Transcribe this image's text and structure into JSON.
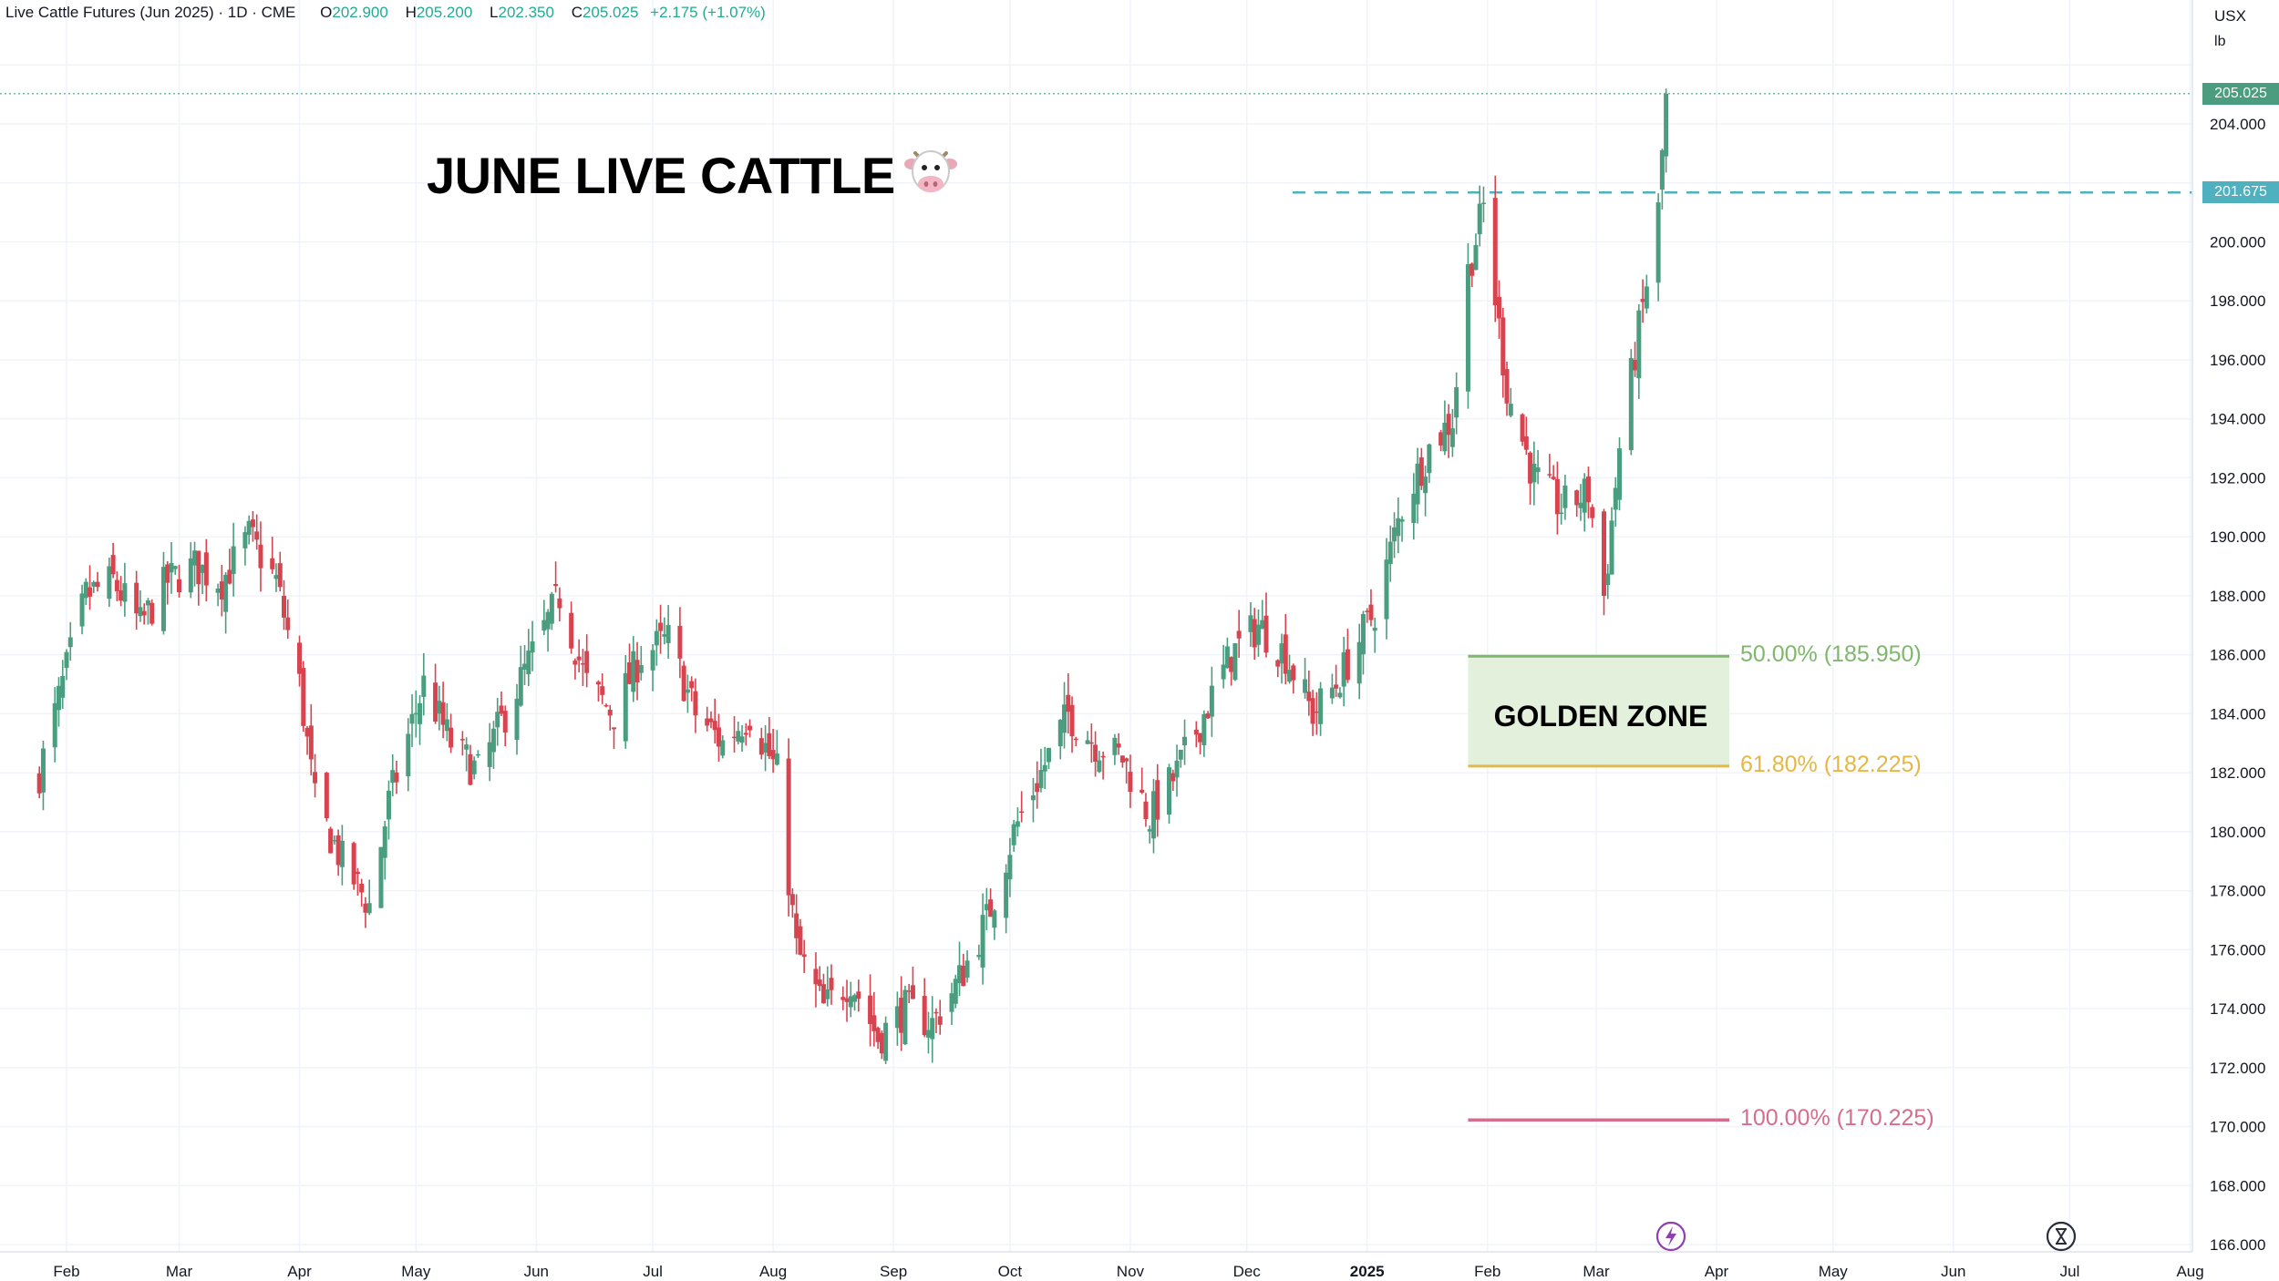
{
  "legend": {
    "symbol": "Live Cattle Futures (Jun 2025) · 1D · CME",
    "open_label": "O",
    "open": "202.900",
    "high_label": "H",
    "high": "205.200",
    "low_label": "L",
    "low": "202.350",
    "close_label": "C",
    "close": "205.025",
    "change": "+2.175 (+1.07%)"
  },
  "currency": {
    "unit": "USX",
    "per": "lb"
  },
  "annotations": {
    "title": "JUNE LIVE CATTLE",
    "zone_label": "GOLDEN ZONE",
    "fib_50": "50.00% (185.950)",
    "fib_618": "61.80% (182.225)",
    "fib_100": "100.00% (170.225)"
  },
  "price_tags": {
    "last": "205.025",
    "resistance": "201.675"
  },
  "colors": {
    "up": "#22ab94",
    "down": "#f23645",
    "candle_up": "#4a9d7f",
    "candle_down": "#d7434f",
    "fib50": "#7fb86b",
    "fib618": "#e4b842",
    "fib100": "#d66d8d",
    "zone_fill": "#e3f1dc",
    "resistance": "#4fb0c0",
    "grid": "#f0f3fa",
    "axis_text": "#131722"
  },
  "icons": {
    "title_icon": "cow-face-icon",
    "axis_buttons": [
      "lightning-icon",
      "hourglass-icon"
    ]
  },
  "chart_data": {
    "type": "candlestick",
    "title": "JUNE LIVE CATTLE",
    "symbol": "Live Cattle Futures (Jun 2025)",
    "interval": "1D",
    "x_ticks": [
      "Feb",
      "Mar",
      "Apr",
      "May",
      "Jun",
      "Jul",
      "Aug",
      "Sep",
      "Oct",
      "Nov",
      "Dec",
      "2025",
      "Feb",
      "Mar",
      "Apr",
      "May",
      "Jun",
      "Jul",
      "Aug"
    ],
    "y_ticks": [
      "166.000",
      "168.000",
      "170.000",
      "172.000",
      "174.000",
      "176.000",
      "178.000",
      "180.000",
      "182.000",
      "184.000",
      "186.000",
      "188.000",
      "190.000",
      "192.000",
      "194.000",
      "196.000",
      "198.000",
      "200.000",
      "204.000"
    ],
    "ylim": [
      166,
      206.5
    ],
    "grid": true,
    "last_price": 205.025,
    "resistance_level": 201.675,
    "fibonacci": [
      {
        "label": "50.00% (185.950)",
        "level": 185.95
      },
      {
        "label": "61.80% (182.225)",
        "level": 182.225
      },
      {
        "label": "100.00% (170.225)",
        "level": 170.225
      }
    ],
    "price_path": {
      "dates": [
        "2024-01-25",
        "2024-02-01",
        "2024-02-06",
        "2024-02-13",
        "2024-02-20",
        "2024-02-27",
        "2024-03-05",
        "2024-03-12",
        "2024-03-19",
        "2024-03-26",
        "2024-04-01",
        "2024-04-05",
        "2024-04-12",
        "2024-04-19",
        "2024-04-24",
        "2024-05-03",
        "2024-05-10",
        "2024-05-17",
        "2024-05-24",
        "2024-05-31",
        "2024-06-07",
        "2024-06-14",
        "2024-06-21",
        "2024-06-28",
        "2024-07-05",
        "2024-07-12",
        "2024-07-19",
        "2024-07-26",
        "2024-08-02",
        "2024-08-07",
        "2024-08-14",
        "2024-08-21",
        "2024-08-28",
        "2024-09-04",
        "2024-09-11",
        "2024-09-18",
        "2024-09-25",
        "2024-10-02",
        "2024-10-09",
        "2024-10-16",
        "2024-10-23",
        "2024-10-30",
        "2024-11-06",
        "2024-11-13",
        "2024-11-20",
        "2024-11-27",
        "2024-12-04",
        "2024-12-11",
        "2024-12-18",
        "2024-12-24",
        "2025-01-03",
        "2025-01-10",
        "2025-01-17",
        "2025-01-23",
        "2025-01-27",
        "2025-01-31",
        "2025-02-06",
        "2025-02-13",
        "2025-02-20",
        "2025-02-27",
        "2025-03-03",
        "2025-03-07",
        "2025-03-12",
        "2025-03-17",
        "2025-03-19"
      ],
      "closes": [
        182,
        185.5,
        188,
        188.5,
        187,
        188.5,
        189,
        188.5,
        190,
        188.5,
        185,
        181,
        179,
        177.5,
        181,
        185,
        183,
        182,
        184,
        186,
        188,
        185,
        184,
        186,
        186.5,
        184,
        183,
        184,
        182,
        176,
        174,
        175,
        173,
        174,
        173.5,
        175,
        177,
        180,
        182,
        184,
        183,
        182.5,
        180.5,
        182,
        184,
        186,
        187,
        186,
        184,
        185,
        187.5,
        191,
        193,
        194,
        199,
        201.2,
        195,
        192,
        191,
        191.5,
        188,
        193,
        197,
        201,
        205.025
      ]
    }
  }
}
